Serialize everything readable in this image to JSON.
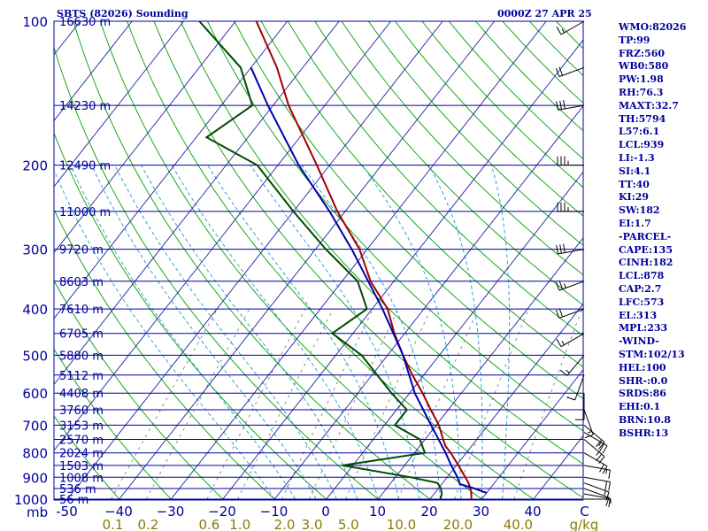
{
  "header": {
    "title": "SBTS (82026) Sounding",
    "time": "0000Z 27 APR 25"
  },
  "chart_data": {
    "type": "line",
    "title": "SBTS (82026) Sounding",
    "pressure_unit": "mb",
    "temperature_unit": "C",
    "mixing_ratio_unit": "g/kg",
    "pressure_levels": [
      {
        "p": 100,
        "label": "100",
        "height": "16630 m"
      },
      {
        "p": 150,
        "label": "",
        "height": "14230 m"
      },
      {
        "p": 200,
        "label": "200",
        "height": "12490 m"
      },
      {
        "p": 250,
        "label": "",
        "height": "11000 m"
      },
      {
        "p": 300,
        "label": "300",
        "height": "9720 m"
      },
      {
        "p": 350,
        "label": "",
        "height": "8603 m"
      },
      {
        "p": 400,
        "label": "400",
        "height": "7610 m"
      },
      {
        "p": 450,
        "label": "",
        "height": "6705 m"
      },
      {
        "p": 500,
        "label": "500",
        "height": "5880 m"
      },
      {
        "p": 550,
        "label": "",
        "height": "5112 m"
      },
      {
        "p": 600,
        "label": "600",
        "height": "4408 m"
      },
      {
        "p": 650,
        "label": "",
        "height": "3760 m"
      },
      {
        "p": 700,
        "label": "700",
        "height": "3153 m"
      },
      {
        "p": 750,
        "label": "",
        "height": "2570 m"
      },
      {
        "p": 800,
        "label": "800",
        "height": "2024 m"
      },
      {
        "p": 850,
        "label": "",
        "height": "1503 m"
      },
      {
        "p": 900,
        "label": "900",
        "height": "1008 m"
      },
      {
        "p": 950,
        "label": "",
        "height": "536 m"
      },
      {
        "p": 1000,
        "label": "1000",
        "height": "56 m"
      }
    ],
    "temperature_ticks": [
      {
        "label": "-50",
        "value": -50
      },
      {
        "label": "−40",
        "value": -40
      },
      {
        "label": "−30",
        "value": -30
      },
      {
        "label": "−20",
        "value": -20
      },
      {
        "label": "−10",
        "value": -10
      },
      {
        "label": "0",
        "value": 0
      },
      {
        "label": "10",
        "value": 10
      },
      {
        "label": "20",
        "value": 20
      },
      {
        "label": "30",
        "value": 30
      },
      {
        "label": "40",
        "value": 40
      },
      {
        "label": "C",
        "value": 50
      }
    ],
    "mixing_ratio_ticks": [
      {
        "label": "0.1",
        "value": 0.1
      },
      {
        "label": "0.2",
        "value": 0.2
      },
      {
        "label": "0.6",
        "value": 0.6
      },
      {
        "label": "1.0",
        "value": 1.0
      },
      {
        "label": "2.0",
        "value": 2.0
      },
      {
        "label": "3.0",
        "value": 3.0
      },
      {
        "label": "5.0",
        "value": 5.0
      },
      {
        "label": "10.0",
        "value": 10.0
      },
      {
        "label": "20.0",
        "value": 20.0
      },
      {
        "label": "40.0",
        "value": 40.0
      },
      {
        "label": "g/kg",
        "value": null
      }
    ],
    "series": [
      {
        "name": "temperature",
        "color": "#a00000",
        "points": [
          {
            "p": 1000,
            "t": 28.0
          },
          {
            "p": 975,
            "t": 27.2
          },
          {
            "p": 950,
            "t": 26.2
          },
          {
            "p": 925,
            "t": 25.0
          },
          {
            "p": 900,
            "t": 23.5
          },
          {
            "p": 850,
            "t": 20.4
          },
          {
            "p": 800,
            "t": 17.0
          },
          {
            "p": 775,
            "t": 15.0
          },
          {
            "p": 750,
            "t": 13.5
          },
          {
            "p": 700,
            "t": 10.5
          },
          {
            "p": 650,
            "t": 6.6
          },
          {
            "p": 600,
            "t": 2.5
          },
          {
            "p": 550,
            "t": -2.2
          },
          {
            "p": 500,
            "t": -7.0
          },
          {
            "p": 450,
            "t": -12.0
          },
          {
            "p": 400,
            "t": -17.0
          },
          {
            "p": 350,
            "t": -24.5
          },
          {
            "p": 300,
            "t": -31.5
          },
          {
            "p": 250,
            "t": -41.5
          },
          {
            "p": 200,
            "t": -52.5
          },
          {
            "p": 150,
            "t": -67.0
          },
          {
            "p": 125,
            "t": -75.0
          },
          {
            "p": 100,
            "t": -86.0
          }
        ]
      },
      {
        "name": "dewpoint",
        "color": "#004a00",
        "points": [
          {
            "p": 1000,
            "t": 22.0
          },
          {
            "p": 975,
            "t": 21.5
          },
          {
            "p": 950,
            "t": 20.5
          },
          {
            "p": 925,
            "t": 19.0
          },
          {
            "p": 900,
            "t": 13.0
          },
          {
            "p": 850,
            "t": -2.0
          },
          {
            "p": 800,
            "t": 12.0
          },
          {
            "p": 750,
            "t": 9.0
          },
          {
            "p": 700,
            "t": 2.0
          },
          {
            "p": 650,
            "t": 2.0
          },
          {
            "p": 600,
            "t": -3.5
          },
          {
            "p": 550,
            "t": -9.0
          },
          {
            "p": 500,
            "t": -15.0
          },
          {
            "p": 450,
            "t": -24.0
          },
          {
            "p": 400,
            "t": -21.0
          },
          {
            "p": 350,
            "t": -27.0
          },
          {
            "p": 300,
            "t": -38.0
          },
          {
            "p": 250,
            "t": -50.0
          },
          {
            "p": 200,
            "t": -64.0
          },
          {
            "p": 175,
            "t": -78.0
          },
          {
            "p": 150,
            "t": -74.0
          },
          {
            "p": 125,
            "t": -82.0
          },
          {
            "p": 100,
            "t": -97.0
          }
        ]
      },
      {
        "name": "parcel",
        "color": "#0000b0",
        "points": [
          {
            "p": 970,
            "t": 30.0
          },
          {
            "p": 950,
            "t": 27.0
          },
          {
            "p": 930,
            "t": 23.5
          },
          {
            "p": 900,
            "t": 22.0
          },
          {
            "p": 850,
            "t": 19.0
          },
          {
            "p": 800,
            "t": 16.0
          },
          {
            "p": 700,
            "t": 9.0
          },
          {
            "p": 600,
            "t": 1.0
          },
          {
            "p": 500,
            "t": -7.0
          },
          {
            "p": 400,
            "t": -18.0
          },
          {
            "p": 300,
            "t": -33.0
          },
          {
            "p": 250,
            "t": -43.0
          },
          {
            "p": 200,
            "t": -56.0
          },
          {
            "p": 150,
            "t": -71.0
          },
          {
            "p": 125,
            "t": -80.0
          }
        ]
      }
    ],
    "wind_barbs": [
      {
        "p": 1000,
        "dir": 90,
        "spd": 5
      },
      {
        "p": 975,
        "dir": 100,
        "spd": 10
      },
      {
        "p": 950,
        "dir": 110,
        "spd": 10
      },
      {
        "p": 925,
        "dir": 110,
        "spd": 15
      },
      {
        "p": 900,
        "dir": 100,
        "spd": 20
      },
      {
        "p": 850,
        "dir": 100,
        "spd": 15
      },
      {
        "p": 800,
        "dir": 120,
        "spd": 20
      },
      {
        "p": 750,
        "dir": 130,
        "spd": 25
      },
      {
        "p": 725,
        "dir": 120,
        "spd": 25
      },
      {
        "p": 700,
        "dir": 130,
        "spd": 20
      },
      {
        "p": 650,
        "dir": 160,
        "spd": 15
      },
      {
        "p": 600,
        "dir": 180,
        "spd": 10
      },
      {
        "p": 550,
        "dir": 200,
        "spd": 10
      },
      {
        "p": 500,
        "dir": 220,
        "spd": 15
      },
      {
        "p": 450,
        "dir": 240,
        "spd": 15
      },
      {
        "p": 400,
        "dir": 250,
        "spd": 20
      },
      {
        "p": 350,
        "dir": 250,
        "spd": 25
      },
      {
        "p": 300,
        "dir": 260,
        "spd": 30
      },
      {
        "p": 250,
        "dir": 270,
        "spd": 35
      },
      {
        "p": 200,
        "dir": 270,
        "spd": 35
      },
      {
        "p": 150,
        "dir": 260,
        "spd": 30
      },
      {
        "p": 125,
        "dir": 250,
        "spd": 20
      },
      {
        "p": 100,
        "dir": 240,
        "spd": 15
      }
    ],
    "grid": true
  },
  "indices": [
    "WMO:82026",
    "TP:99",
    "FRZ:560",
    "WB0:580",
    "PW:1.98",
    "RH:76.3",
    "MAXT:32.7",
    "TH:5794",
    "L57:6.1",
    "LCL:939",
    "LI:-1.3",
    "SI:4.1",
    "TT:40",
    "KI:29",
    "SW:182",
    "EI:1.7",
    "-PARCEL-",
    "CAPE:135",
    "CINH:182",
    "LCL:878",
    "CAP:2.7",
    "LFC:573",
    "EL:313",
    "MPL:233",
    "-WIND-",
    "STM:102/13",
    "HEL:100",
    "SHR-:0.0",
    "SRDS:86",
    "EHI:0.1",
    "BRN:10.8",
    "BSHR:13"
  ],
  "colors": {
    "frame": "#00009c",
    "isobar": "#00009c",
    "isotherm": "#2020a0",
    "dry_adiabat": "#00a000",
    "moist_adiabat": "#1a9bd0",
    "mixing_ratio": "#808080",
    "temp_label": "#00009c",
    "mixing_label": "#8a7a00"
  }
}
